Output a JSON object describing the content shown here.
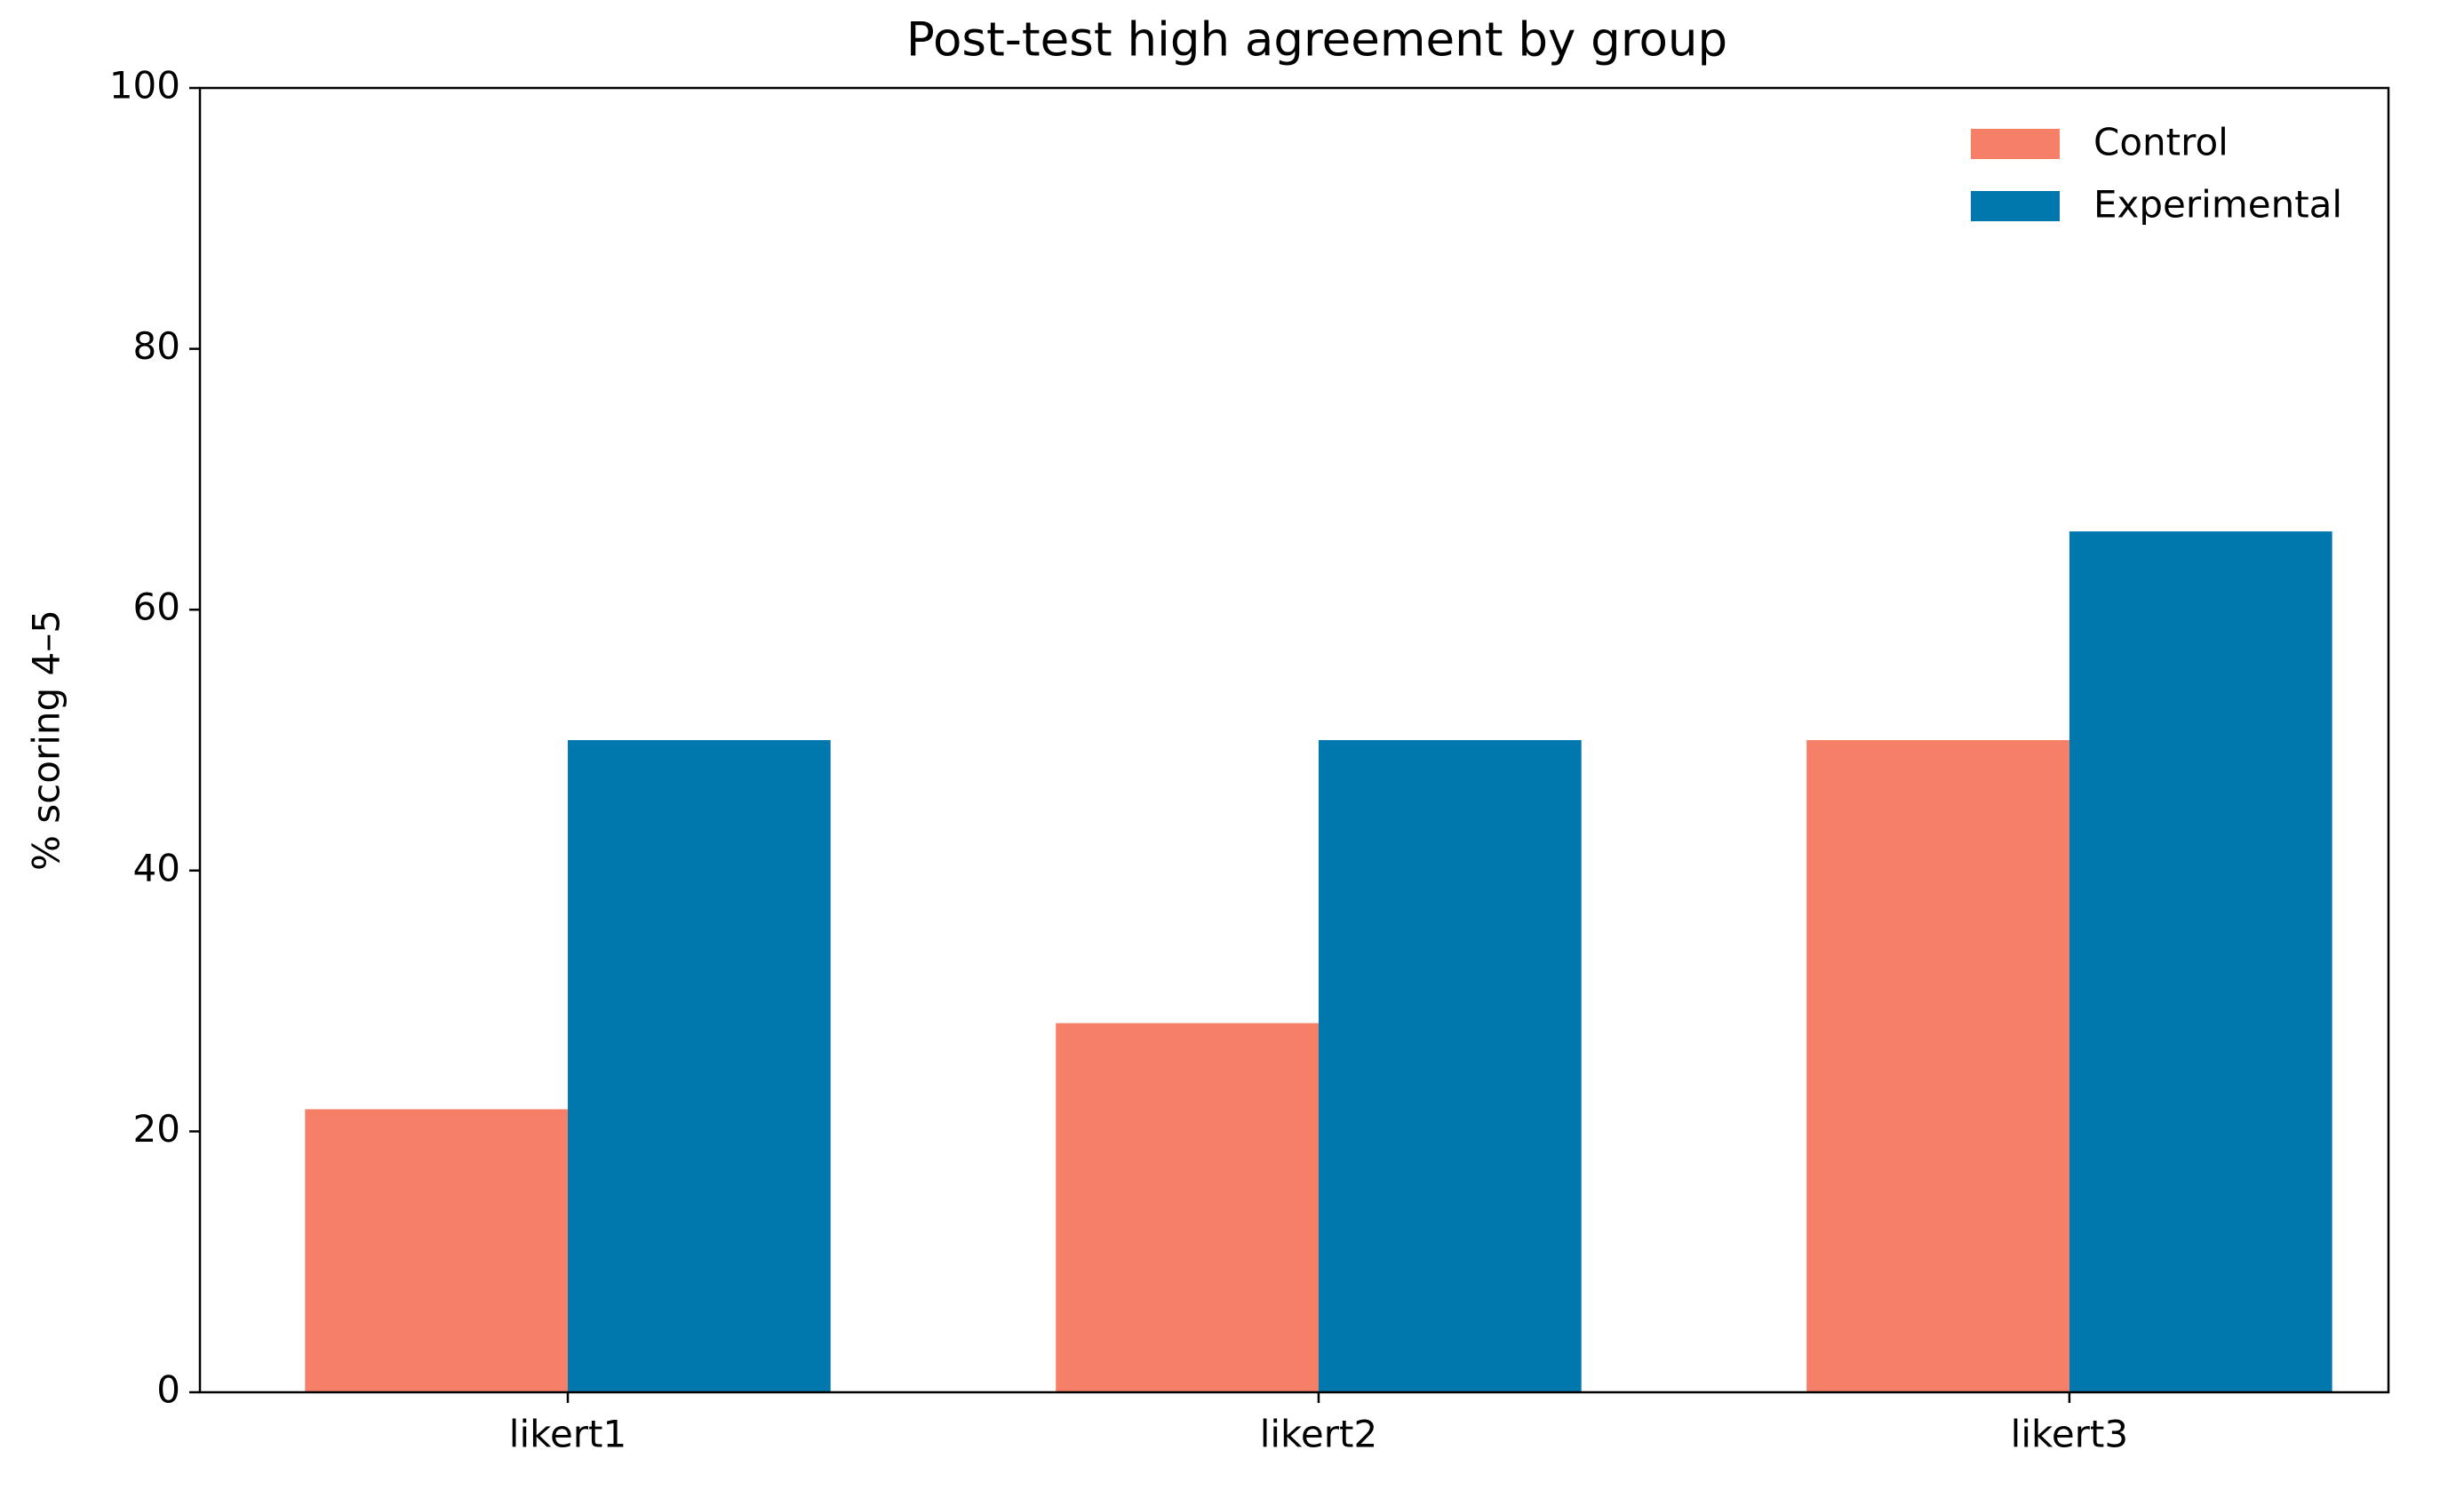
{
  "chart_data": {
    "type": "bar",
    "title": "Post-test high agreement by group",
    "ylabel": "% scoring 4–5",
    "categories": [
      "likert1",
      "likert2",
      "likert3"
    ],
    "series": [
      {
        "name": "Control",
        "color": "#f67f67",
        "values": [
          21.7,
          28.3,
          50
        ]
      },
      {
        "name": "Experimental",
        "color": "#0078ae",
        "values": [
          50,
          50,
          66
        ]
      }
    ],
    "ylim": [
      0,
      100
    ],
    "yticks": [
      0,
      20,
      40,
      60,
      80,
      100
    ],
    "grid": false,
    "legend": "upper right"
  }
}
